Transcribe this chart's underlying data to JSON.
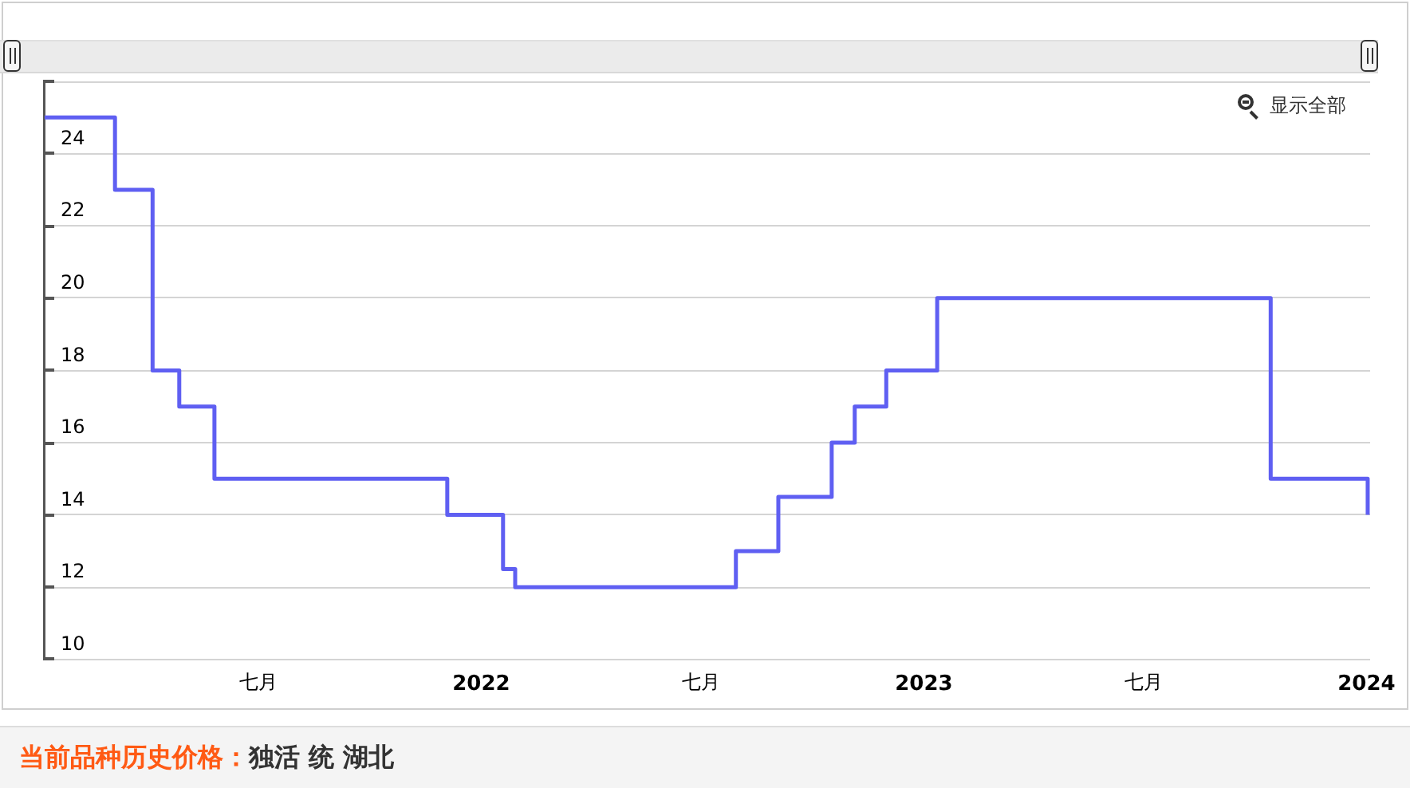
{
  "chart_data": {
    "type": "step",
    "title": "当前品种历史价格：",
    "subtitle": "独活 统 湖北",
    "annotations": [
      "显示全部"
    ],
    "x": [
      "2021-01-06",
      "2021-03-05",
      "2021-04-05",
      "2021-04-27",
      "2021-05-26",
      "2021-12-04",
      "2022-01-19",
      "2022-01-29",
      "2022-07-30",
      "2022-09-03",
      "2022-10-17",
      "2022-11-05",
      "2022-12-01",
      "2023-01-12",
      "2023-10-14",
      "2024-01-02"
    ],
    "values": [
      25,
      23,
      18,
      17,
      15,
      14,
      12.5,
      12,
      13,
      14.5,
      16,
      17,
      18,
      20,
      15,
      14
    ],
    "color": "#5f5ff2",
    "xlim": [
      "2021-01-06",
      "2024-01-04"
    ],
    "xticks": [
      {
        "value": "2021-07-01",
        "label": "七月"
      },
      {
        "value": "2022-01-01",
        "label": "2022"
      },
      {
        "value": "2022-07-01",
        "label": "七月"
      },
      {
        "value": "2023-01-01",
        "label": "2023"
      },
      {
        "value": "2023-07-01",
        "label": "七月"
      },
      {
        "value": "2024-01-01",
        "label": "2024"
      }
    ],
    "ylim": [
      10,
      26
    ],
    "yticks": [
      10,
      12,
      14,
      16,
      18,
      20,
      22,
      24,
      {
        "value": 26,
        "label": null
      }
    ],
    "grid": "y",
    "legend": false,
    "marker": "none"
  }
}
